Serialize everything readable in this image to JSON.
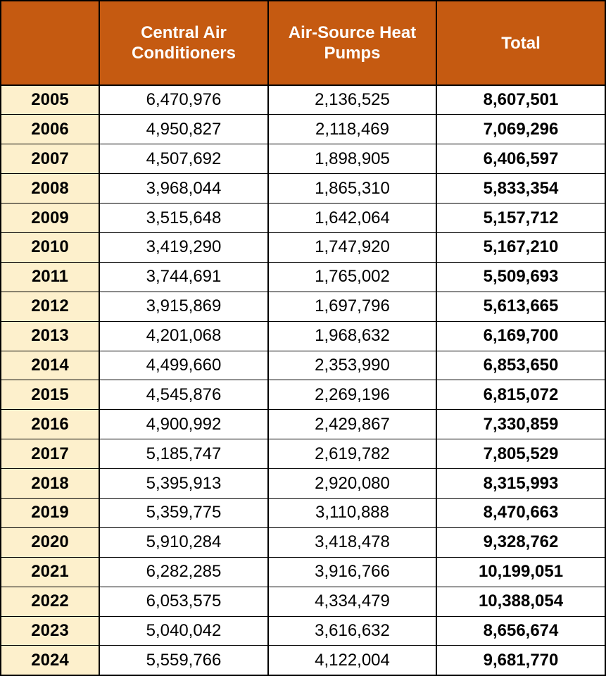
{
  "chart_data": {
    "type": "table",
    "columns": [
      "",
      "Central Air Conditioners",
      "Air-Source Heat Pumps",
      "Total"
    ],
    "header_lines": [
      [],
      [
        "Central Air",
        "Conditioners"
      ],
      [
        "Air-Source Heat",
        "Pumps"
      ],
      [
        "Total"
      ]
    ],
    "rows": [
      [
        "2005",
        "6,470,976",
        "2,136,525",
        "8,607,501"
      ],
      [
        "2006",
        "4,950,827",
        "2,118,469",
        "7,069,296"
      ],
      [
        "2007",
        "4,507,692",
        "1,898,905",
        "6,406,597"
      ],
      [
        "2008",
        "3,968,044",
        "1,865,310",
        "5,833,354"
      ],
      [
        "2009",
        "3,515,648",
        "1,642,064",
        "5,157,712"
      ],
      [
        "2010",
        "3,419,290",
        "1,747,920",
        "5,167,210"
      ],
      [
        "2011",
        "3,744,691",
        "1,765,002",
        "5,509,693"
      ],
      [
        "2012",
        "3,915,869",
        "1,697,796",
        "5,613,665"
      ],
      [
        "2013",
        "4,201,068",
        "1,968,632",
        "6,169,700"
      ],
      [
        "2014",
        "4,499,660",
        "2,353,990",
        "6,853,650"
      ],
      [
        "2015",
        "4,545,876",
        "2,269,196",
        "6,815,072"
      ],
      [
        "2016",
        "4,900,992",
        "2,429,867",
        "7,330,859"
      ],
      [
        "2017",
        "5,185,747",
        "2,619,782",
        "7,805,529"
      ],
      [
        "2018",
        "5,395,913",
        "2,920,080",
        "8,315,993"
      ],
      [
        "2019",
        "5,359,775",
        "3,110,888",
        "8,470,663"
      ],
      [
        "2020",
        "5,910,284",
        "3,418,478",
        "9,328,762"
      ],
      [
        "2021",
        "6,282,285",
        "3,916,766",
        "10,199,051"
      ],
      [
        "2022",
        "6,053,575",
        "4,334,479",
        "10,388,054"
      ],
      [
        "2023",
        "5,040,042",
        "3,616,632",
        "8,656,674"
      ],
      [
        "2024",
        "5,559,766",
        "4,122,004",
        "9,681,770"
      ]
    ]
  },
  "colors": {
    "header_bg": "#c55a11",
    "header_text": "#ffffff",
    "year_bg": "#fdf0cc",
    "border": "#000000"
  }
}
